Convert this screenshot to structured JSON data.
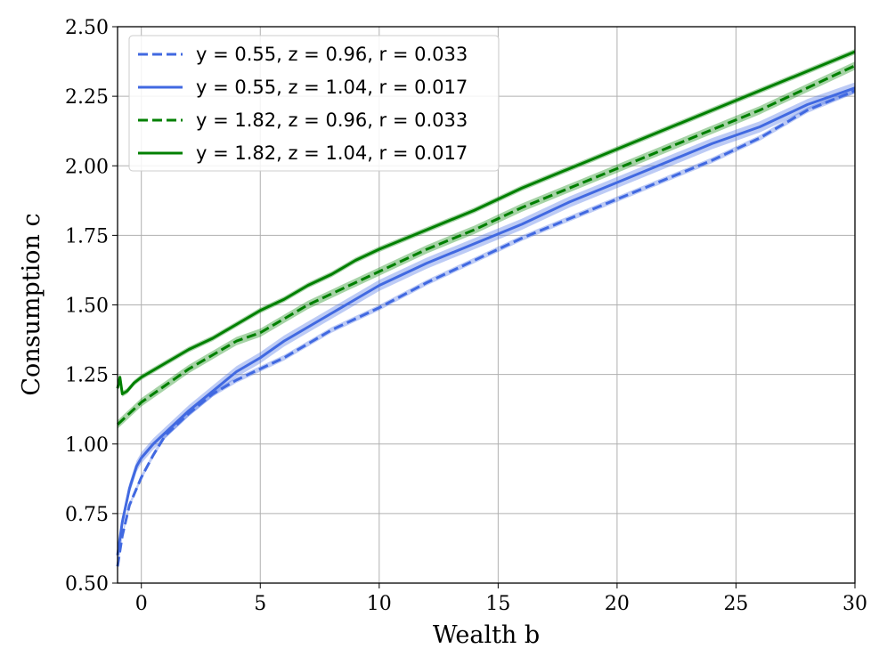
{
  "chart_data": {
    "type": "line",
    "xlabel": "Wealth b",
    "ylabel": "Consumption c",
    "xlim": [
      -1,
      30
    ],
    "ylim": [
      0.5,
      2.5
    ],
    "x_ticks": [
      "0",
      "5",
      "10",
      "15",
      "20",
      "25",
      "30"
    ],
    "y_ticks": [
      "0.50",
      "0.75",
      "1.00",
      "1.25",
      "1.50",
      "1.75",
      "2.00",
      "2.25",
      "2.50"
    ],
    "grid": true,
    "legend_position": "top-left",
    "series": [
      {
        "name": "y = 0.55, z = 0.96, r = 0.033",
        "color": "#4169e1",
        "dash": "dashed",
        "x": [
          -1,
          -0.8,
          -0.5,
          0,
          0.5,
          1,
          2,
          3,
          4,
          5,
          6,
          7,
          8,
          9,
          10,
          12,
          14,
          16,
          18,
          20,
          22,
          24,
          26,
          28,
          30
        ],
        "y": [
          0.56,
          0.67,
          0.78,
          0.88,
          0.96,
          1.03,
          1.11,
          1.18,
          1.23,
          1.27,
          1.31,
          1.36,
          1.41,
          1.45,
          1.49,
          1.58,
          1.66,
          1.74,
          1.81,
          1.88,
          1.95,
          2.02,
          2.1,
          2.2,
          2.27
        ],
        "band": 0.01
      },
      {
        "name": "y = 0.55, z = 1.04, r = 0.017",
        "color": "#4169e1",
        "dash": "solid",
        "x": [
          -1,
          -0.8,
          -0.5,
          -0.2,
          0,
          0.5,
          1,
          2,
          3,
          4,
          5,
          6,
          7,
          8,
          9,
          10,
          12,
          14,
          16,
          18,
          20,
          22,
          24,
          26,
          28,
          30
        ],
        "y": [
          0.6,
          0.72,
          0.84,
          0.92,
          0.95,
          1.0,
          1.04,
          1.12,
          1.19,
          1.26,
          1.31,
          1.37,
          1.42,
          1.47,
          1.52,
          1.57,
          1.65,
          1.72,
          1.79,
          1.87,
          1.94,
          2.01,
          2.08,
          2.14,
          2.22,
          2.28
        ],
        "band": 0.02
      },
      {
        "name": "y = 1.82, z = 0.96, r = 0.033",
        "color": "#008000",
        "dash": "dashed",
        "x": [
          -1,
          0,
          1,
          2,
          3,
          4,
          5,
          6,
          7,
          8,
          9,
          10,
          12,
          14,
          16,
          18,
          20,
          22,
          24,
          26,
          28,
          30
        ],
        "y": [
          1.07,
          1.15,
          1.21,
          1.27,
          1.32,
          1.37,
          1.4,
          1.45,
          1.5,
          1.54,
          1.58,
          1.62,
          1.7,
          1.77,
          1.85,
          1.92,
          1.99,
          2.06,
          2.13,
          2.2,
          2.28,
          2.36
        ],
        "band": 0.015
      },
      {
        "name": "y = 1.82, z = 1.04, r = 0.017",
        "color": "#008000",
        "dash": "solid",
        "x": [
          -1,
          -0.9,
          -0.8,
          -0.6,
          -0.3,
          0,
          1,
          2,
          3,
          4,
          5,
          6,
          7,
          8,
          9,
          10,
          12,
          14,
          16,
          18,
          20,
          22,
          24,
          26,
          28,
          30
        ],
        "y": [
          1.2,
          1.24,
          1.18,
          1.19,
          1.22,
          1.24,
          1.29,
          1.34,
          1.38,
          1.43,
          1.48,
          1.52,
          1.57,
          1.61,
          1.66,
          1.7,
          1.77,
          1.84,
          1.92,
          1.99,
          2.06,
          2.13,
          2.2,
          2.27,
          2.34,
          2.41
        ],
        "band": 0.01
      }
    ]
  }
}
